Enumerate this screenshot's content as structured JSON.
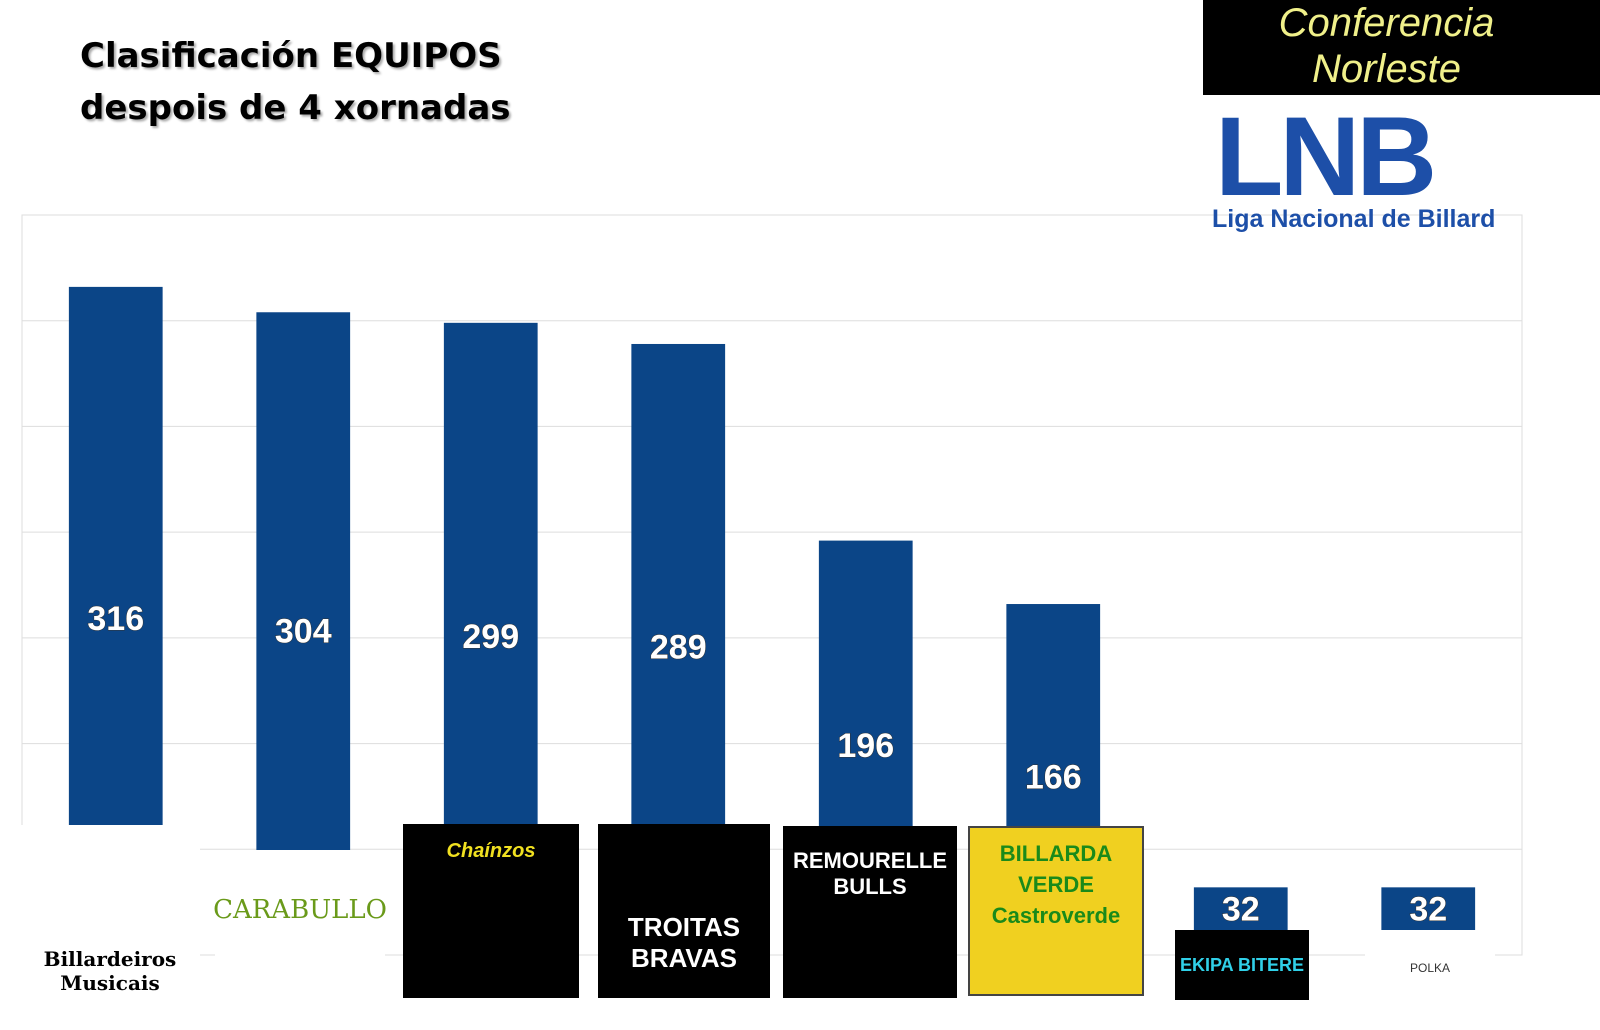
{
  "chart_data": {
    "type": "bar",
    "title": "Clasificación EQUIPOS",
    "subtitle": "despois de 4 xornadas",
    "brand": {
      "conference": "Conferencia Norleste",
      "logo": "LNB",
      "league": "Liga Nacional de Billard"
    },
    "categories": [
      "Billardeiros Musicais",
      "CARABULLO",
      "Chaínzos",
      "TROITAS BRAVAS",
      "REMOURELLE BULLS",
      "BILLARDA VERDE Castroverde",
      "EKIPA BITERE",
      "POLKA"
    ],
    "values": [
      316,
      304,
      299,
      289,
      196,
      166,
      32,
      32
    ],
    "color": "#0b4587",
    "ylim": [
      0,
      350
    ],
    "yticks": [
      0,
      50,
      100,
      150,
      200,
      250,
      300,
      350
    ],
    "grid": true
  }
}
